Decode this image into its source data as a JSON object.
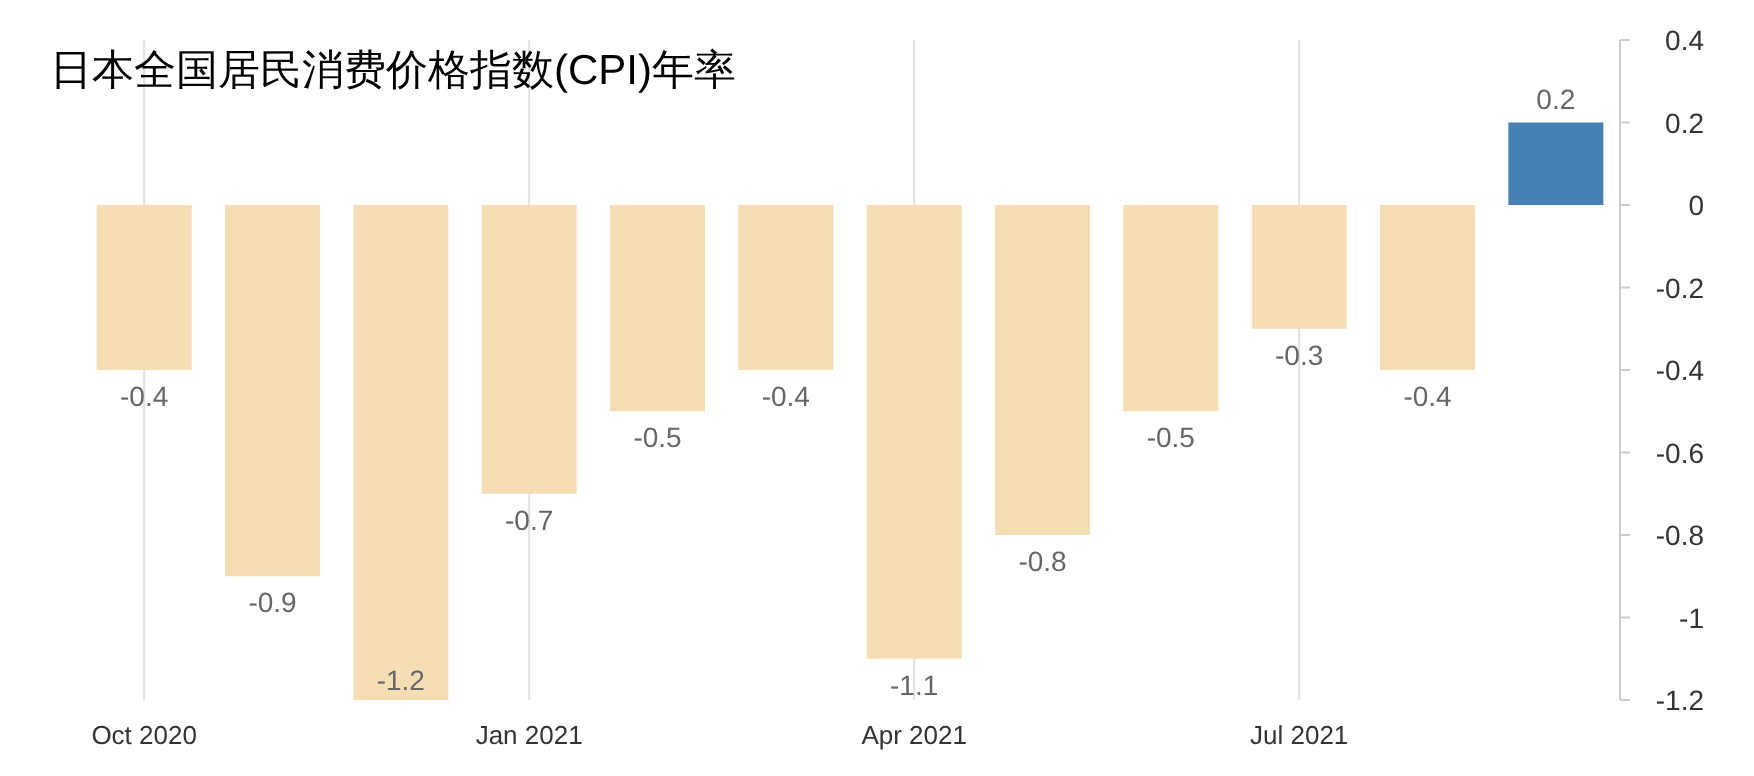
{
  "chart_data": {
    "type": "bar",
    "title": "日本全国居民消费价格指数(CPI)年率",
    "categories": [
      "Oct 2020",
      null,
      null,
      "Jan 2021",
      null,
      null,
      "Apr 2021",
      null,
      null,
      "Jul 2021",
      null,
      null
    ],
    "values": [
      -0.4,
      -0.9,
      -1.2,
      -0.7,
      -0.5,
      -0.4,
      -1.1,
      -0.8,
      -0.5,
      -0.3,
      -0.4,
      0.2
    ],
    "colors": [
      "#f5deb3",
      "#f5deb3",
      "#f5deb3",
      "#f5deb3",
      "#f5deb3",
      "#f5deb3",
      "#f5deb3",
      "#f5deb3",
      "#f5deb3",
      "#f5deb3",
      "#f5deb3",
      "#4682b4"
    ],
    "ylim": [
      -1.2,
      0.4
    ],
    "yticks": [
      0.4,
      0.2,
      0,
      -0.2,
      -0.4,
      -0.6,
      -0.8,
      -1,
      -1.2
    ],
    "grid": "x",
    "data_labels": true
  }
}
